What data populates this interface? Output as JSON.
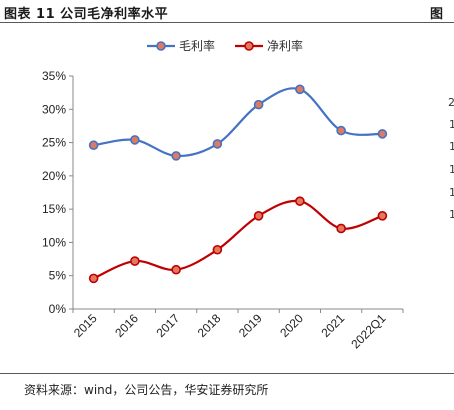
{
  "header": {
    "title": "图表 11  公司毛净利率水平",
    "title_right": "图"
  },
  "footer": {
    "source": "资料来源：wind，公司公告，华安证券研究所"
  },
  "clipped_right": [
    "2",
    "1",
    "1",
    "1",
    "1",
    "1"
  ],
  "chart_data": {
    "type": "line",
    "title": "",
    "xlabel": "",
    "ylabel": "",
    "categories": [
      "2015",
      "2016",
      "2017",
      "2018",
      "2019",
      "2020",
      "2021",
      "2022Q1"
    ],
    "ylim": [
      0,
      35
    ],
    "yticks": [
      "0%",
      "5%",
      "10%",
      "15%",
      "20%",
      "25%",
      "30%",
      "35%"
    ],
    "grid": false,
    "legend_position": "top-center",
    "series": [
      {
        "name": "毛利率",
        "color": "#4472c4",
        "values": [
          24.6,
          25.4,
          23.0,
          24.8,
          30.7,
          33.0,
          26.8,
          26.3
        ]
      },
      {
        "name": "净利率",
        "color": "#c00000",
        "values": [
          4.6,
          7.2,
          5.9,
          8.9,
          14.0,
          16.2,
          12.1,
          14.0
        ]
      }
    ]
  }
}
